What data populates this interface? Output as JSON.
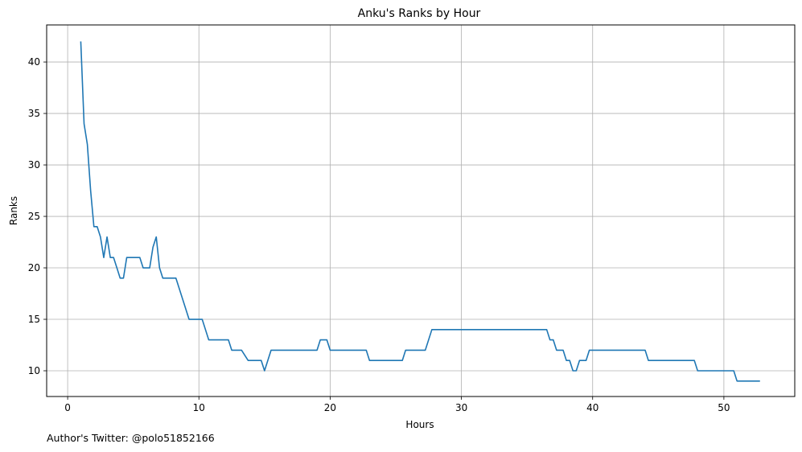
{
  "chart_data": {
    "type": "line",
    "title": "Anku's Ranks by Hour",
    "xlabel": "Hours",
    "ylabel": "Ranks",
    "xlim": [
      -1.6,
      55.4
    ],
    "ylim": [
      7.5,
      43.6
    ],
    "xticks": [
      0,
      10,
      20,
      30,
      40,
      50
    ],
    "yticks": [
      10,
      15,
      20,
      25,
      30,
      35,
      40
    ],
    "grid": true,
    "color": "#1f77b4",
    "series": [
      {
        "x": [
          1.0,
          1.25,
          1.5,
          1.75,
          2.0,
          2.25,
          2.5,
          2.75,
          3.0,
          3.25,
          3.5,
          3.75,
          4.0,
          4.25,
          4.5,
          4.75,
          5.0,
          5.5,
          5.75,
          6.0,
          6.25,
          6.5,
          6.75,
          7.0,
          7.25,
          7.5,
          7.75,
          8.25,
          9.25,
          10.25,
          10.75,
          12.25,
          12.5,
          13.25,
          13.75,
          14.75,
          15.0,
          15.5,
          19.0,
          19.25,
          19.75,
          20.0,
          22.75,
          23.0,
          25.5,
          25.75,
          27.25,
          27.75,
          36.5,
          36.75,
          37.0,
          37.25,
          37.75,
          38.0,
          38.25,
          38.5,
          38.75,
          39.0,
          39.5,
          39.75,
          44.0,
          44.25,
          47.75,
          48.0,
          50.75,
          51.0,
          52.75
        ],
        "y": [
          42,
          34,
          32,
          27.5,
          24,
          24,
          23,
          21,
          23,
          21,
          21,
          20,
          19,
          19,
          21,
          21,
          21,
          21,
          20,
          20,
          20,
          22,
          23,
          20,
          19,
          19,
          19,
          19,
          15,
          15,
          13,
          13,
          12,
          12,
          11,
          11,
          10,
          12,
          12,
          13,
          13,
          12,
          12,
          11,
          11,
          12,
          12,
          14,
          14,
          13,
          13,
          12,
          12,
          11,
          11,
          10,
          10,
          11,
          11,
          12,
          12,
          11,
          11,
          10,
          10,
          9,
          9
        ]
      }
    ],
    "footnote": "Author's Twitter: @polo51852166"
  }
}
